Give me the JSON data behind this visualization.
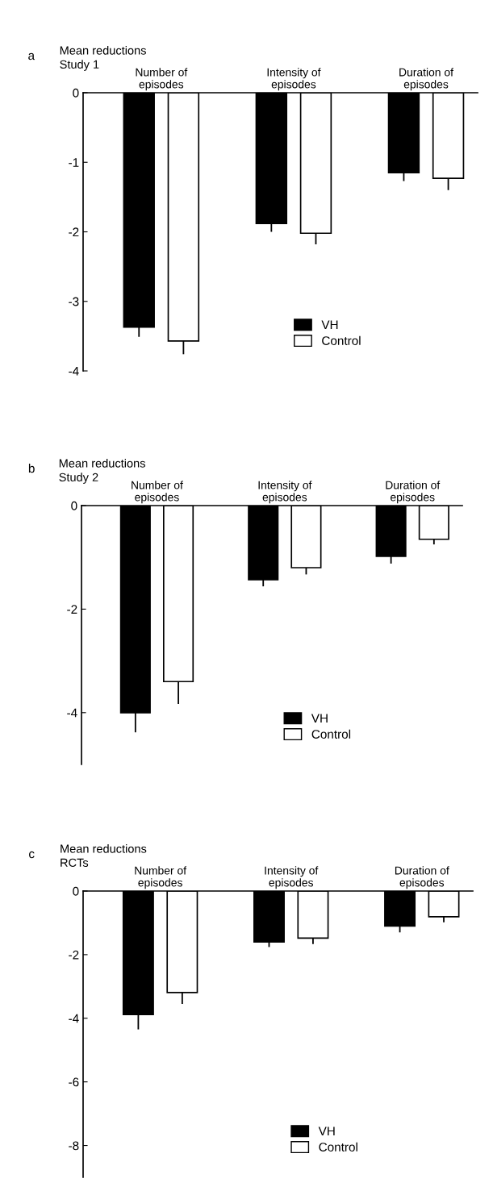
{
  "chart_data": [
    {
      "type": "bar",
      "title": "Mean reductions\nStudy 1",
      "annotations": [
        "a"
      ],
      "categories": [
        "Number of\nepisodes",
        "Intensity of\nepisodes",
        "Duration of\nepisodes"
      ],
      "series": [
        {
          "name": "VH",
          "color": "#000000",
          "values": [
            -3.37,
            -1.88,
            -1.15
          ],
          "errors": [
            [
              -3.51,
              -3.37
            ],
            [
              -2.0,
              -1.88
            ],
            [
              -1.27,
              -1.15
            ]
          ]
        },
        {
          "name": "Control",
          "color": "#ffffff",
          "values": [
            -3.57,
            -2.02,
            -1.23
          ],
          "errors": [
            [
              -3.76,
              -3.57
            ],
            [
              -2.18,
              -2.02
            ],
            [
              -1.4,
              -1.23
            ]
          ]
        }
      ],
      "ylim": [
        -4,
        0
      ],
      "yticks": [
        0,
        -1,
        -2,
        -3,
        -4
      ],
      "legend": "bottom",
      "grid": false
    },
    {
      "type": "bar",
      "title": "Mean reductions\nStudy 2",
      "annotations": [
        "b"
      ],
      "categories": [
        "Number of\nepisodes",
        "Intensity of\nepisodes",
        "Duration of\nepisodes"
      ],
      "series": [
        {
          "name": "VH",
          "color": "#000000",
          "values": [
            -4.0,
            -1.43,
            -0.98
          ],
          "errors": [
            [
              -4.38,
              -4.0
            ],
            [
              -1.56,
              -1.43
            ],
            [
              -1.12,
              -0.98
            ]
          ]
        },
        {
          "name": "Control",
          "color": "#ffffff",
          "values": [
            -3.4,
            -1.2,
            -0.65
          ],
          "errors": [
            [
              -3.83,
              -3.4
            ],
            [
              -1.33,
              -1.2
            ],
            [
              -0.75,
              -0.65
            ]
          ]
        }
      ],
      "ylim": [
        -5,
        0
      ],
      "yticks": [
        0,
        -2,
        -4
      ],
      "legend": "bottom",
      "grid": false
    },
    {
      "type": "bar",
      "title": "Mean reductions\nRCTs",
      "annotations": [
        "c"
      ],
      "categories": [
        "Number of\nepisodes",
        "Intensity of\nepisodes",
        "Duration of\nepisodes"
      ],
      "series": [
        {
          "name": "VH",
          "color": "#000000",
          "values": [
            -3.88,
            -1.6,
            -1.1
          ],
          "errors": [
            [
              -4.35,
              -3.88
            ],
            [
              -1.76,
              -1.6
            ],
            [
              -1.3,
              -1.1
            ]
          ]
        },
        {
          "name": "Control",
          "color": "#ffffff",
          "values": [
            -3.19,
            -1.48,
            -0.81
          ],
          "errors": [
            [
              -3.55,
              -3.19
            ],
            [
              -1.67,
              -1.48
            ],
            [
              -0.98,
              -0.81
            ]
          ]
        }
      ],
      "ylim": [
        -9,
        0
      ],
      "yticks": [
        0,
        -2,
        -4,
        -6,
        -8
      ],
      "legend": "bottom",
      "grid": false
    }
  ]
}
